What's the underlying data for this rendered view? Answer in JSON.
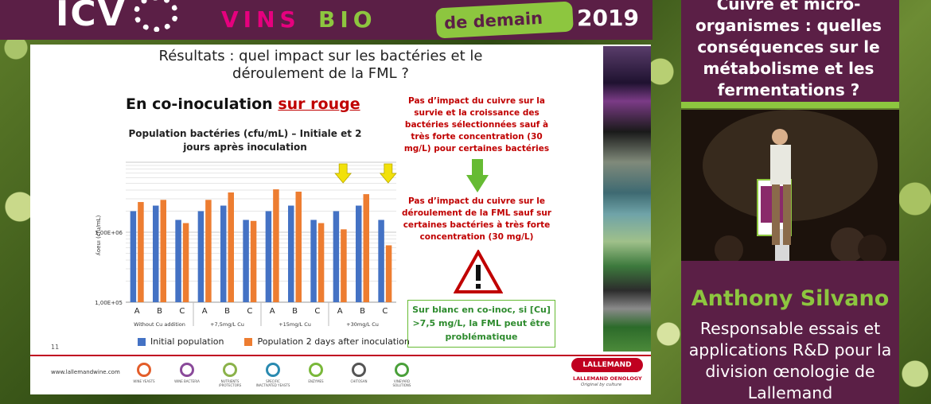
{
  "header": {
    "logo_text": "ICV",
    "brand_vins": "VINS",
    "brand_bio": "BIO",
    "promo_text": "de demain",
    "year": "2019"
  },
  "slide": {
    "title": "Résultats : quel impact sur les bactéries et le déroulement de la FML ?",
    "heading_prefix": "En co-inoculation ",
    "heading_highlight": "sur rouge",
    "chart_title": "Population bactéries (cfu/mL) – Initiale et 2 jours après inoculation",
    "note1": "Pas d’impact du cuivre sur la survie et la croissance des bactéries sélectionnées sauf à très forte concentration (30 mg/L) pour certaines bactéries",
    "note2": "Pas d’impact du cuivre sur le déroulement de la FML sauf sur certaines bactéries à très forte concentration (30 mg/L)",
    "conclusion": "Sur blanc en co-inoc, si [Cu] >7,5 mg/L, la FML peut être problématique",
    "slide_number": "11"
  },
  "chart_data": {
    "type": "bar",
    "title": "Population bactéries (cfu/mL) – Initiale et 2 jours après inoculation",
    "ylabel": "ʎoeuı (cfu/mL)",
    "yscale": "log",
    "ylim": [
      100000,
      10000000
    ],
    "y_ticks": [
      "1,00E+05",
      "1,00E+06"
    ],
    "categories": [
      "A",
      "B",
      "C",
      "A",
      "B",
      "C",
      "A",
      "B",
      "C",
      "A",
      "B",
      "C"
    ],
    "groups": [
      "Without Cu addition",
      "+7,5mg/L Cu",
      "+15mg/L Cu",
      "+30mg/L Cu"
    ],
    "series": [
      {
        "name": "Initial population",
        "color": "#4472c4",
        "values": [
          2000000,
          2400000,
          1500000,
          2000000,
          2400000,
          1500000,
          2000000,
          2400000,
          1500000,
          2000000,
          2400000,
          1500000
        ]
      },
      {
        "name": "Population 2 days after inoculation",
        "color": "#ed7d31",
        "values": [
          2700000,
          2900000,
          1350000,
          2900000,
          3700000,
          1450000,
          4100000,
          3800000,
          1350000,
          1100000,
          3500000,
          650000
        ]
      }
    ],
    "annotations": [
      "yellow arrow over +30mg/L Cu group A",
      "yellow arrow over +30mg/L Cu group C"
    ]
  },
  "footer": {
    "url": "www.lallemandwine.com",
    "icons": [
      {
        "name": "wine-yeasts-icon",
        "label": "WINE YEASTS",
        "color": "#e35d2a"
      },
      {
        "name": "wine-bacteria-icon",
        "label": "WINE BACTERIA",
        "color": "#8a4a9a"
      },
      {
        "name": "nutrients-icon",
        "label": "NUTRIENTS /PROTECTORS",
        "color": "#8bb24a"
      },
      {
        "name": "specific-yeasts-icon",
        "label": "SPECIFIC INACTIVATED YEASTS",
        "color": "#2a8ab0"
      },
      {
        "name": "enzymes-icon",
        "label": "ENZYMES",
        "color": "#7ab83a"
      },
      {
        "name": "chitosan-icon",
        "label": "CHITOSAN",
        "color": "#555555"
      },
      {
        "name": "vineyard-solutions-icon",
        "label": "VINEYARD SOLUTIONS",
        "color": "#4aa03a"
      }
    ],
    "brand": "LALLEMAND",
    "brand_sub": "LALLEMAND OENOLOGY",
    "tagline": "Original by culture"
  },
  "speaker_panel": {
    "topic": "Cuivre et micro-organismes : quelles conséquences sur le métabolisme et les fermentations ?",
    "name": "Anthony Silvano",
    "role": "Responsable essais et applications R&D pour la division œnologie de Lallemand"
  }
}
